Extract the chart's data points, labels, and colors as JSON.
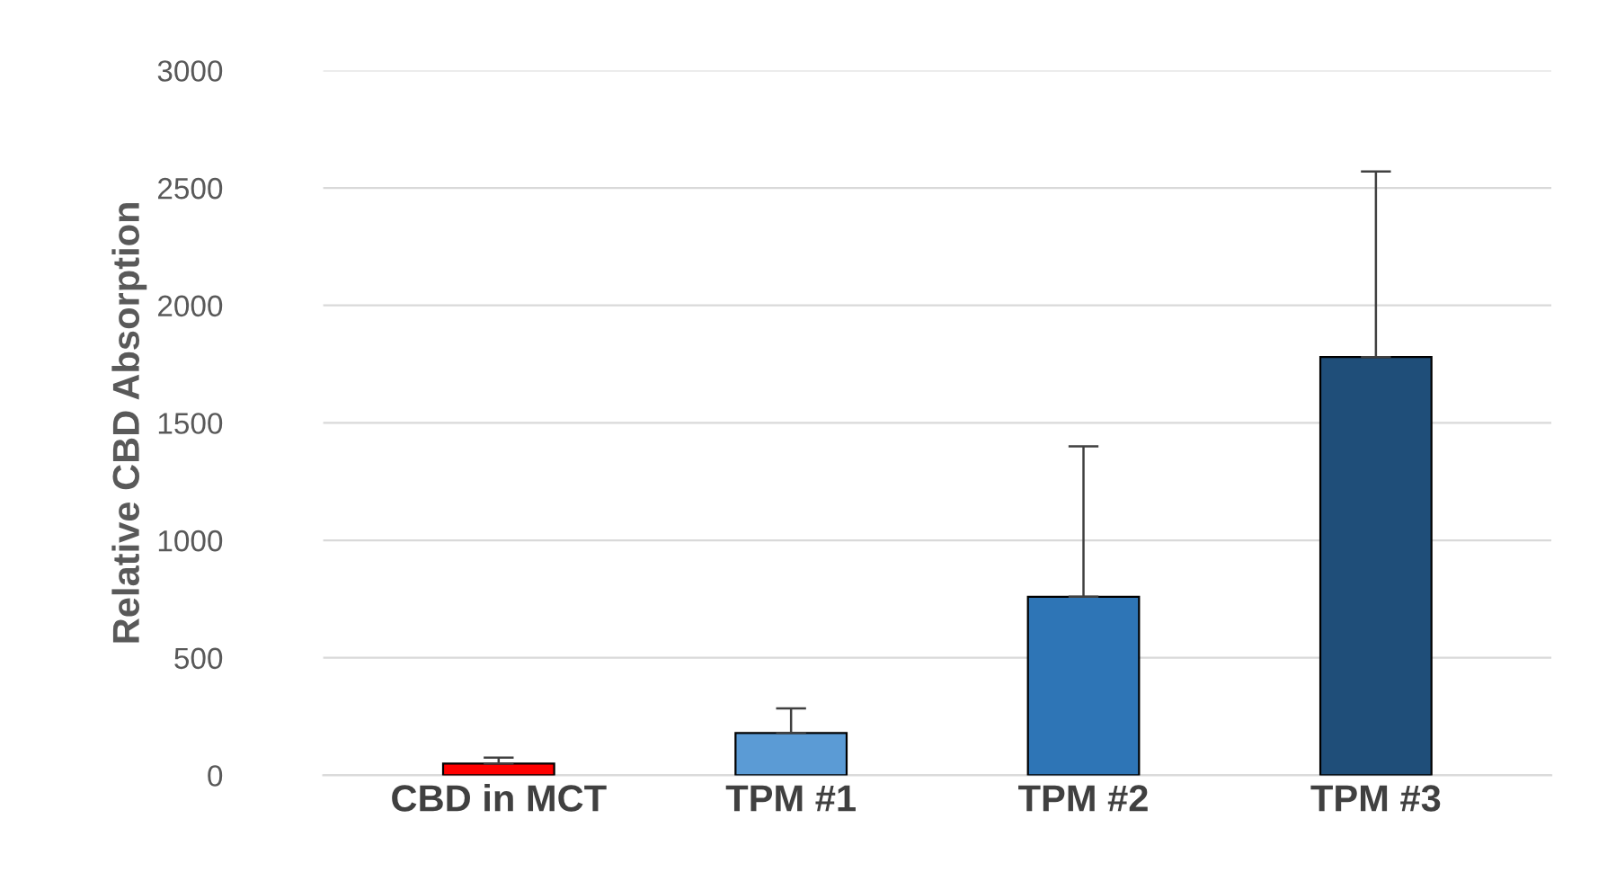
{
  "chart_data": {
    "type": "bar",
    "ylabel": "Relative CBD Absorption",
    "categories": [
      "CBD in MCT",
      "TPM #1",
      "TPM #2",
      "TPM #3"
    ],
    "values": [
      50,
      180,
      760,
      1780
    ],
    "colors": [
      "#ff0000",
      "#5b9bd5",
      "#2e75b6",
      "#1f4e79"
    ],
    "errors": [
      [
        50,
        75
      ],
      [
        180,
        285
      ],
      [
        760,
        1400
      ],
      [
        1780,
        2570
      ]
    ],
    "ylim": [
      0,
      3000
    ],
    "yticks": [
      0,
      500,
      1000,
      1500,
      2000,
      2500,
      3000
    ],
    "grid": "y",
    "legend": false
  }
}
